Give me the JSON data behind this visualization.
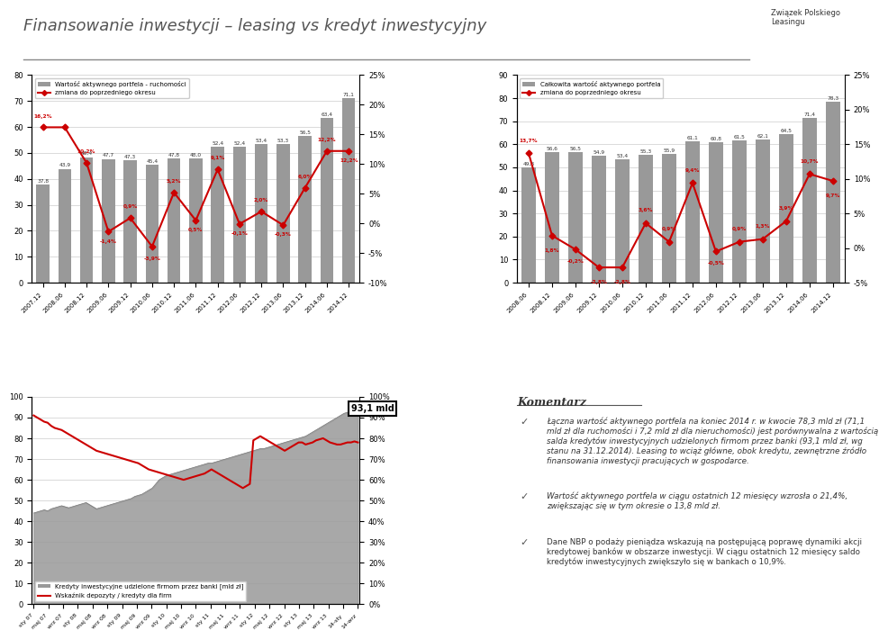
{
  "title": "Finansowanie inwestycji – leasing vs kredyt inwestycyjny",
  "title_fontsize": 13,
  "bg_color": "#ffffff",
  "bar_color": "#999999",
  "line_color": "#cc0000",
  "chart1": {
    "legend1": "Wartość aktywnego portfela - ruchomości",
    "legend2": "zmiana do poprzedniego okresu",
    "categories": [
      "2007.12",
      "2008.06",
      "2008.12",
      "2009.06",
      "2009.12",
      "2010.06",
      "2010.12",
      "2011.06",
      "2011.12",
      "2012.06",
      "2012.12",
      "2013.06",
      "2013.12",
      "2014.06",
      "2014.12"
    ],
    "bar_values": [
      37.8,
      43.9,
      48.4,
      47.7,
      47.3,
      45.4,
      47.8,
      48.0,
      52.4,
      52.4,
      53.4,
      53.3,
      56.5,
      63.4,
      71.1
    ],
    "line_values": [
      16.2,
      16.2,
      10.2,
      -1.4,
      0.9,
      -3.9,
      5.2,
      0.5,
      9.1,
      -0.1,
      2.0,
      -0.3,
      6.0,
      12.2,
      12.2
    ],
    "line_labels": [
      "16,2%",
      "",
      "10,2%",
      "-1,4%",
      "0,9%",
      "-3,9%",
      "5,2%",
      "0,5%",
      "9,1%",
      "-0,1%",
      "2,0%",
      "-0,3%",
      "6,0%",
      "12,2%",
      "12,2%"
    ],
    "ylim_left": [
      0,
      80
    ],
    "ylim_right": [
      -10,
      25
    ],
    "yticks_left": [
      0,
      10,
      20,
      30,
      40,
      50,
      60,
      70,
      80
    ],
    "yticks_right": [
      -10,
      -5,
      0,
      5,
      10,
      15,
      20,
      25
    ],
    "line_label_dy": [
      1.5,
      0,
      1.5,
      -2.0,
      1.5,
      -2.5,
      1.5,
      -2.0,
      1.5,
      -2.0,
      1.5,
      -2.0,
      1.5,
      1.5,
      -2.0
    ]
  },
  "chart2": {
    "legend1": "Całkowita wartość aktywnego portfela",
    "legend2": "zmiana do poprzedniego okresu",
    "categories": [
      "2008.06",
      "2008.12",
      "2009.06",
      "2009.12",
      "2010.06",
      "2010.12",
      "2011.06",
      "2011.12",
      "2012.06",
      "2012.12",
      "2013.06",
      "2013.12",
      "2014.06",
      "2014.12"
    ],
    "bar_values": [
      49.8,
      56.6,
      56.5,
      54.9,
      53.4,
      55.3,
      55.9,
      61.1,
      60.8,
      61.5,
      62.1,
      64.5,
      71.4,
      78.3
    ],
    "line_values": [
      13.7,
      1.8,
      -0.2,
      -2.8,
      -2.8,
      3.6,
      0.9,
      9.4,
      -0.5,
      0.9,
      1.3,
      3.9,
      10.7,
      9.7
    ],
    "line_labels": [
      "13,7%",
      "1,8%",
      "-0,2%",
      "-2,8%",
      "-2,8%",
      "3,6%",
      "0,9%",
      "9,4%",
      "-0,5%",
      "0,9%",
      "1,3%",
      "3,9%",
      "10,7%",
      "9,7%"
    ],
    "ylim_left": [
      0,
      90
    ],
    "ylim_right": [
      -5,
      25
    ],
    "yticks_left": [
      0,
      10,
      20,
      30,
      40,
      50,
      60,
      70,
      80,
      90
    ],
    "yticks_right": [
      -5,
      0,
      5,
      10,
      15,
      20,
      25
    ],
    "line_label_dy": [
      1.5,
      -2.5,
      -2.0,
      -2.5,
      -2.5,
      1.5,
      1.5,
      1.5,
      -2.0,
      1.5,
      1.5,
      1.5,
      1.5,
      -2.5
    ]
  },
  "chart3": {
    "legend1": "Kredyty inwestycyjne udzielone firmom przez banki [mld zł]",
    "legend2": "Wskaźnik depozyty / kredyty dla firm",
    "annotation": "93,1 mld",
    "ylim_left": [
      0,
      100
    ],
    "ylim_right": [
      0,
      100
    ],
    "yticks_left": [
      0,
      10,
      20,
      30,
      40,
      50,
      60,
      70,
      80,
      90,
      100
    ],
    "yticks_right": [
      0,
      10,
      20,
      30,
      40,
      50,
      60,
      70,
      80,
      90,
      100
    ],
    "credits": [
      44,
      44.5,
      45,
      45.5,
      45,
      46,
      46.5,
      47,
      47.5,
      47,
      46.5,
      47,
      47.5,
      48,
      48.5,
      49,
      48,
      47,
      46,
      46.5,
      47,
      47.5,
      48,
      48.5,
      49,
      49.5,
      50,
      50.5,
      51,
      52,
      52.5,
      53,
      54,
      55,
      56,
      58,
      60,
      61,
      62,
      62.5,
      63,
      63.5,
      64,
      64.5,
      65,
      65.5,
      66,
      66.5,
      67,
      67.5,
      68,
      68,
      68.5,
      69,
      69.5,
      70,
      70.5,
      71,
      71.5,
      72,
      72.5,
      73,
      73.5,
      74,
      74.5,
      75,
      75,
      75.5,
      76,
      76.5,
      77,
      77.5,
      78,
      78.5,
      79,
      79.5,
      80,
      80.5,
      81,
      82,
      83,
      84,
      85,
      86,
      87,
      88,
      89,
      90,
      91,
      92,
      92.5,
      93,
      93.1,
      93.1
    ],
    "ratio": [
      91,
      90,
      89,
      88,
      87.5,
      86,
      85,
      84.5,
      84,
      83,
      82,
      81,
      80,
      79,
      78,
      77,
      76,
      75,
      74,
      73.5,
      73,
      72.5,
      72,
      71.5,
      71,
      70.5,
      70,
      69.5,
      69,
      68.5,
      68,
      67,
      66,
      65,
      64.5,
      64,
      63.5,
      63,
      62.5,
      62,
      61.5,
      61,
      60.5,
      60,
      60.5,
      61,
      61.5,
      62,
      62.5,
      63,
      64,
      65,
      64,
      63,
      62,
      61,
      60,
      59,
      58,
      57,
      56,
      57,
      58,
      79,
      80,
      81,
      80,
      79,
      78,
      77,
      76,
      75,
      74,
      75,
      76,
      77,
      78,
      78,
      77,
      77.5,
      78,
      79,
      79.5,
      80,
      79,
      78,
      77.5,
      77,
      77,
      77.5,
      78,
      78,
      78.5,
      78,
      78
    ],
    "xtick_labels": [
      "sty 07",
      "maj 07",
      "wrz 07",
      "sty 08",
      "maj 08",
      "wrz 08",
      "sty 09",
      "maj 09",
      "wrz 09",
      "sty 10",
      "maj 10",
      "wrz 10",
      "sty 11",
      "maj 11",
      "wrz 11",
      "sty 12",
      "maj 12",
      "wrz 12",
      "sty 13",
      "maj 13",
      "wrz 13",
      "14-sty",
      "14-wrz"
    ]
  },
  "comment_title": "Komentarz",
  "comment_text1_bold": "Łączna wartość aktywnego portfela",
  "comment_text1": " na koniec 2014 r. w kwocie 78,3 mld zł (71,1 mld zł dla ruchomości i 7,2 mld zł dla nieruchomości) jest porównywalna z wartością salda kredytów inwestycyjnych udzielonych firmom przez banki (93,1 mld zł, wg stanu na 31.12.2014). Leasing to wciąż główne, obok kredytu, zewnętrzne źródło finansowania inwestycji pracujących w gospodarce.",
  "comment_text2_bold": "Wartość aktywnego portfela w ciągu ostatnich 12 miesięcy wzrosła o 21,4%,",
  "comment_text2": " zwiększając się w tym okresie o 13,8 mld zł.",
  "comment_text3": "Dane NBP o podaży pieniądza wskazują na postępującą poprawę dynamiki akcji kredytowej banków w obszarze inwestycji. W ciągu ostatnich 12 miesięcy saldo kredytów inwestycyjnych zwiększyło się w bankach o 10,9%."
}
